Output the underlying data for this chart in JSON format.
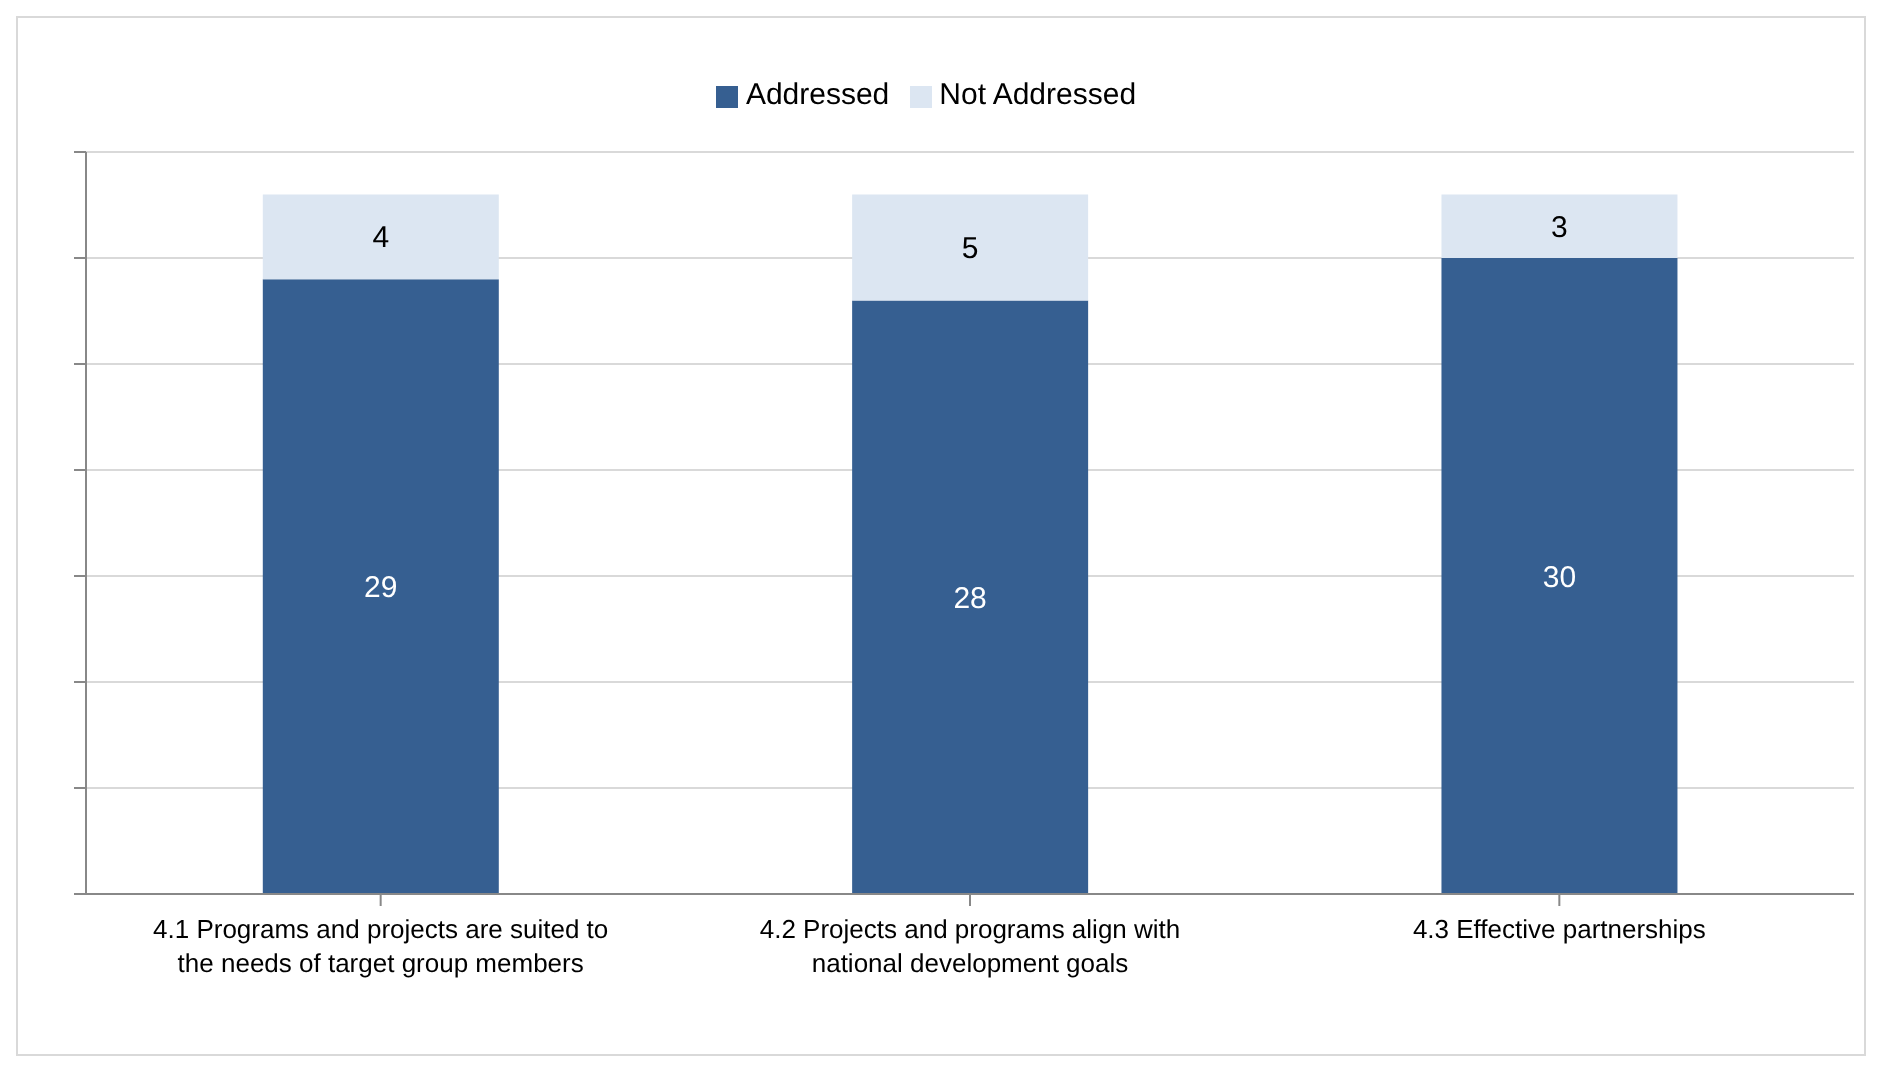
{
  "chart_data": {
    "type": "bar",
    "stacked": true,
    "categories": [
      "4.1 Programs and projects are suited to the needs of target group members",
      "4.2 Projects and programs align with national development goals",
      "4.3 Effective partnerships"
    ],
    "series": [
      {
        "name": "Addressed",
        "color": "#365f91",
        "values": [
          29,
          28,
          30
        ]
      },
      {
        "name": "Not Addressed",
        "color": "#dce6f2",
        "values": [
          4,
          5,
          3
        ]
      }
    ],
    "ylim": [
      0,
      35
    ],
    "tick_labels": "x",
    "grid": "y",
    "legend": "top",
    "data_labels": true
  }
}
